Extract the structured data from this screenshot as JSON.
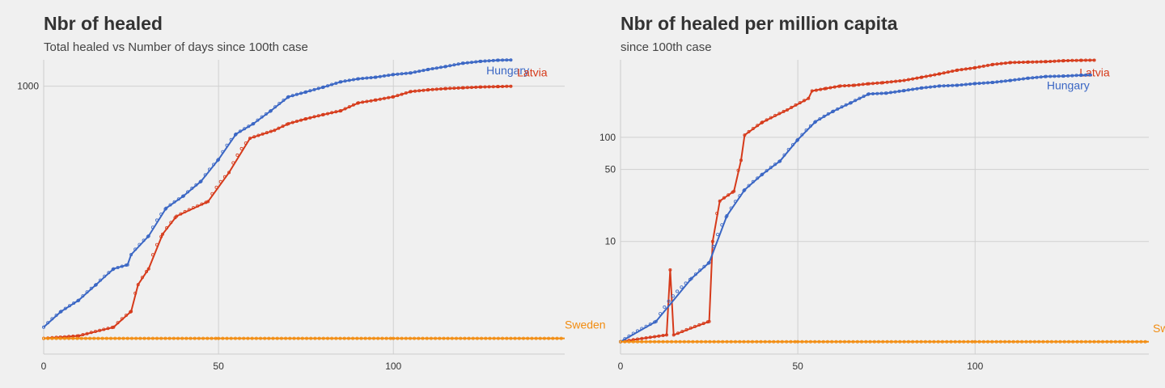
{
  "chart_data": [
    {
      "type": "line",
      "title": "Nbr of healed",
      "subtitle": "Total healed vs Number of days since 100th case",
      "xlabel": "",
      "ylabel": "",
      "xlim": [
        0,
        149
      ],
      "ylim": [
        0,
        1975
      ],
      "scale": "log",
      "x_ticks": [
        0,
        50,
        100
      ],
      "x_tick_labels": [
        "0",
        "50",
        "100"
      ],
      "y_ticks": [
        1000
      ],
      "y_tick_labels": [
        "1000"
      ],
      "grid": true,
      "label_placement": "at line end",
      "series": [
        {
          "name": "Hungary",
          "color": "#3a66c4",
          "points": [
            [
              0,
              1
            ],
            [
              5,
              2
            ],
            [
              10,
              3
            ],
            [
              15,
              5
            ],
            [
              20,
              8
            ],
            [
              24,
              9
            ],
            [
              25,
              12
            ],
            [
              30,
              20
            ],
            [
              35,
              42
            ],
            [
              40,
              58
            ],
            [
              45,
              85
            ],
            [
              50,
              150
            ],
            [
              55,
              290
            ],
            [
              60,
              380
            ],
            [
              65,
              530
            ],
            [
              70,
              760
            ],
            [
              75,
              860
            ],
            [
              80,
              975
            ],
            [
              85,
              1120
            ],
            [
              90,
              1210
            ],
            [
              95,
              1260
            ],
            [
              100,
              1350
            ],
            [
              105,
              1410
            ],
            [
              110,
              1540
            ],
            [
              115,
              1660
            ],
            [
              120,
              1810
            ],
            [
              125,
              1900
            ],
            [
              130,
              1955
            ],
            [
              134,
              1970
            ]
          ]
        },
        {
          "name": "Latvia",
          "color": "#d63a1a",
          "points": [
            [
              0,
              0.5
            ],
            [
              10,
              0.6
            ],
            [
              20,
              1
            ],
            [
              25,
              2
            ],
            [
              27,
              5
            ],
            [
              30,
              8
            ],
            [
              34,
              21
            ],
            [
              38,
              34
            ],
            [
              47,
              50
            ],
            [
              53,
              107
            ],
            [
              59,
              260
            ],
            [
              66,
              320
            ],
            [
              70,
              380
            ],
            [
              75,
              430
            ],
            [
              80,
              480
            ],
            [
              85,
              530
            ],
            [
              90,
              650
            ],
            [
              95,
              700
            ],
            [
              100,
              760
            ],
            [
              105,
              870
            ],
            [
              110,
              910
            ],
            [
              115,
              940
            ],
            [
              120,
              960
            ],
            [
              125,
              980
            ],
            [
              130,
              990
            ],
            [
              134,
              1000
            ]
          ]
        },
        {
          "name": "Sweden",
          "color": "#f28c10",
          "points": [
            [
              0,
              0.5
            ],
            [
              50,
              0.5
            ],
            [
              100,
              0.5
            ],
            [
              149,
              0.5
            ]
          ]
        }
      ]
    },
    {
      "type": "line",
      "title": "Nbr of healed per million capita",
      "subtitle": "since 100th case",
      "xlabel": "",
      "ylabel": "",
      "xlim": [
        0,
        149
      ],
      "ylim": [
        0,
        525
      ],
      "scale": "log",
      "x_ticks": [
        0,
        50,
        100
      ],
      "x_tick_labels": [
        "0",
        "50",
        "100"
      ],
      "y_ticks": [
        10,
        50,
        100
      ],
      "y_tick_labels": [
        "10",
        "50",
        "100"
      ],
      "grid": true,
      "label_placement": "at line end",
      "series": [
        {
          "name": "Latvia",
          "color": "#d63a1a",
          "points": [
            [
              0,
              0.3
            ],
            [
              13,
              0.5
            ],
            [
              14,
              5
            ],
            [
              15,
              0.5
            ],
            [
              25,
              1
            ],
            [
              26,
              10
            ],
            [
              28,
              25
            ],
            [
              32,
              31
            ],
            [
              34,
              61
            ],
            [
              35,
              105
            ],
            [
              40,
              138
            ],
            [
              47,
              180
            ],
            [
              53,
              230
            ],
            [
              54,
              270
            ],
            [
              58,
              285
            ],
            [
              62,
              300
            ],
            [
              66,
              305
            ],
            [
              70,
              315
            ],
            [
              74,
              322
            ],
            [
              80,
              338
            ],
            [
              85,
              362
            ],
            [
              90,
              389
            ],
            [
              95,
              421
            ],
            [
              100,
              443
            ],
            [
              105,
              475
            ],
            [
              110,
              495
            ],
            [
              115,
              500
            ],
            [
              120,
              505
            ],
            [
              125,
              515
            ],
            [
              130,
              520
            ],
            [
              134,
              521
            ]
          ]
        },
        {
          "name": "Hungary",
          "color": "#3a66c4",
          "points": [
            [
              0,
              0.3
            ],
            [
              10,
              1
            ],
            [
              20,
              4
            ],
            [
              25,
              6
            ],
            [
              30,
              18
            ],
            [
              35,
              32
            ],
            [
              40,
              45
            ],
            [
              45,
              60
            ],
            [
              50,
              95
            ],
            [
              55,
              140
            ],
            [
              60,
              175
            ],
            [
              65,
              210
            ],
            [
              70,
              253
            ],
            [
              75,
              258
            ],
            [
              80,
              272
            ],
            [
              85,
              288
            ],
            [
              90,
              300
            ],
            [
              95,
              305
            ],
            [
              100,
              316
            ],
            [
              105,
              324
            ],
            [
              110,
              338
            ],
            [
              115,
              355
            ],
            [
              120,
              368
            ],
            [
              125,
              371
            ],
            [
              130,
              378
            ],
            [
              133,
              380
            ]
          ]
        },
        {
          "name": "Sweden",
          "color": "#f28c10",
          "points": [
            [
              0,
              0.3
            ],
            [
              50,
              0.3
            ],
            [
              100,
              0.3
            ],
            [
              149,
              0.3
            ]
          ]
        }
      ]
    }
  ]
}
